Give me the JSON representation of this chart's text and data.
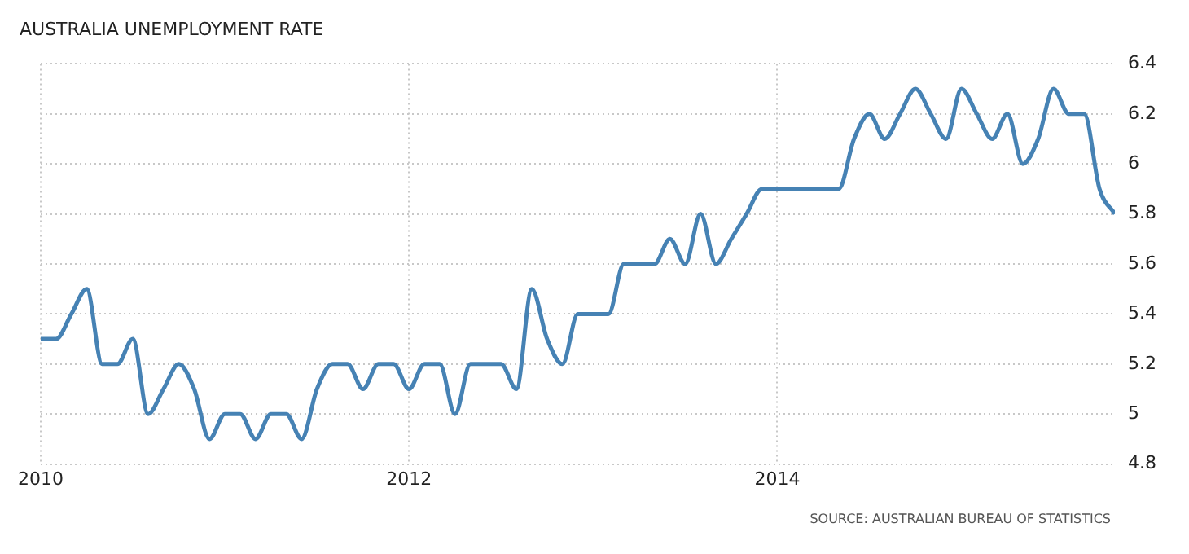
{
  "chart_data": {
    "type": "line",
    "title": "AUSTRALIA UNEMPLOYMENT RATE",
    "annotations": [
      "SOURCE: AUSTRALIAN BUREAU OF STATISTICS"
    ],
    "x": [
      "2010-01",
      "2010-02",
      "2010-03",
      "2010-04",
      "2010-05",
      "2010-06",
      "2010-07",
      "2010-08",
      "2010-09",
      "2010-10",
      "2010-11",
      "2010-12",
      "2011-01",
      "2011-02",
      "2011-03",
      "2011-04",
      "2011-05",
      "2011-06",
      "2011-07",
      "2011-08",
      "2011-09",
      "2011-10",
      "2011-11",
      "2011-12",
      "2012-01",
      "2012-02",
      "2012-03",
      "2012-04",
      "2012-05",
      "2012-06",
      "2012-07",
      "2012-08",
      "2012-09",
      "2012-10",
      "2012-11",
      "2012-12",
      "2013-01",
      "2013-02",
      "2013-03",
      "2013-04",
      "2013-05",
      "2013-06",
      "2013-07",
      "2013-08",
      "2013-09",
      "2013-10",
      "2013-11",
      "2013-12",
      "2014-01",
      "2014-02",
      "2014-03",
      "2014-04",
      "2014-05",
      "2014-06",
      "2014-07",
      "2014-08",
      "2014-09",
      "2014-10",
      "2014-11",
      "2014-12",
      "2015-01",
      "2015-02",
      "2015-03",
      "2015-04",
      "2015-05",
      "2015-06",
      "2015-07",
      "2015-08",
      "2015-09",
      "2015-10",
      "2015-11"
    ],
    "series": [
      {
        "color": "#4682b4",
        "values": [
          5.3,
          5.3,
          5.4,
          5.5,
          5.2,
          5.2,
          5.3,
          5.0,
          5.1,
          5.2,
          5.1,
          4.9,
          5.0,
          5.0,
          4.9,
          5.0,
          5.0,
          4.9,
          5.1,
          5.2,
          5.2,
          5.1,
          5.2,
          5.2,
          5.1,
          5.2,
          5.2,
          5.0,
          5.2,
          5.2,
          5.2,
          5.1,
          5.5,
          5.3,
          5.2,
          5.4,
          5.4,
          5.4,
          5.6,
          5.6,
          5.6,
          5.7,
          5.6,
          5.8,
          5.6,
          5.7,
          5.8,
          5.9,
          5.9,
          5.9,
          5.9,
          5.9,
          5.9,
          6.1,
          6.2,
          6.1,
          6.2,
          6.3,
          6.2,
          6.1,
          6.3,
          6.2,
          6.1,
          6.2,
          6.0,
          6.1,
          6.3,
          6.2,
          6.2,
          5.9,
          5.8
        ]
      }
    ],
    "xlim": [
      "2010-01",
      "2015-11"
    ],
    "xticks": [
      "2010",
      "2012",
      "2014"
    ],
    "ylim": [
      4.8,
      6.4
    ],
    "yticks": [
      4.8,
      5,
      5.2,
      5.4,
      5.6,
      5.8,
      6,
      6.2,
      6.4
    ],
    "grid": true,
    "legend": false,
    "marker": "none",
    "line_style": "solid"
  }
}
